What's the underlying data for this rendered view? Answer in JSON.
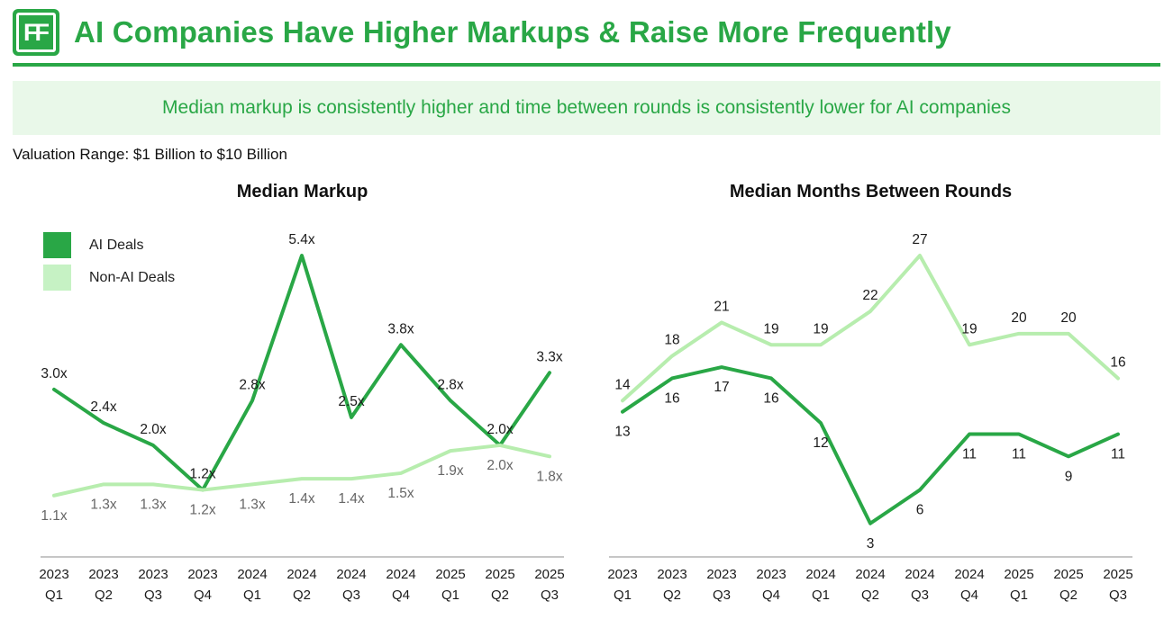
{
  "header": {
    "logo_text": "FF",
    "title": "AI Companies Have Higher Markups & Raise More Frequently"
  },
  "banner": {
    "text": "Median markup is consistently higher and time between rounds is consistently lower for AI companies"
  },
  "subtitle": {
    "text": "Valuation Range: $1 Billion to $10 Billion"
  },
  "legend": {
    "items": [
      {
        "label": "AI Deals",
        "color": "#29a746"
      },
      {
        "label": "Non-AI Deals",
        "color": "#c6f2c4"
      }
    ]
  },
  "colors": {
    "accent_green": "#29a746",
    "light_green_line": "#b7edae",
    "banner_background": "#e9f8e9",
    "axis_line": "#8c8c8c",
    "ai_label_color": "#1b1b1b",
    "non_ai_label_color_left": "#666666"
  },
  "chart_data": [
    {
      "type": "line",
      "title": "Median Markup",
      "categories": [
        "2023 Q1",
        "2023 Q2",
        "2023 Q3",
        "2023 Q4",
        "2024 Q1",
        "2024 Q2",
        "2024 Q3",
        "2024 Q4",
        "2025 Q1",
        "2025 Q2",
        "2025 Q3"
      ],
      "series": [
        {
          "name": "AI Deals",
          "color": "#29a746",
          "label_color": "#1b1b1b",
          "values": [
            3.0,
            2.4,
            2.0,
            1.2,
            2.8,
            5.4,
            2.5,
            3.8,
            2.8,
            2.0,
            3.3
          ],
          "labels": [
            "3.0x",
            "2.4x",
            "2.0x",
            "1.2x",
            "2.8x",
            "5.4x",
            "2.5x",
            "3.8x",
            "2.8x",
            "2.0x",
            "3.3x"
          ]
        },
        {
          "name": "Non-AI Deals",
          "color": "#b7edae",
          "label_color": "#666666",
          "values": [
            1.1,
            1.3,
            1.3,
            1.2,
            1.3,
            1.4,
            1.4,
            1.5,
            1.9,
            2.0,
            1.8
          ],
          "labels": [
            "1.1x",
            "1.3x",
            "1.3x",
            "1.2x",
            "1.3x",
            "1.4x",
            "1.4x",
            "1.5x",
            "1.9x",
            "2.0x",
            "1.8x"
          ]
        }
      ],
      "ylim": [
        0,
        6
      ],
      "grid": false,
      "legend_position": "top-left"
    },
    {
      "type": "line",
      "title": "Median Months Between Rounds",
      "categories": [
        "2023 Q1",
        "2023 Q2",
        "2023 Q3",
        "2023 Q4",
        "2024 Q1",
        "2024 Q2",
        "2024 Q3",
        "2024 Q4",
        "2025 Q1",
        "2025 Q2",
        "2025 Q3"
      ],
      "series": [
        {
          "name": "AI Deals",
          "color": "#29a746",
          "label_color": "#1b1b1b",
          "values": [
            13,
            16,
            17,
            16,
            12,
            3,
            6,
            11,
            11,
            9,
            11
          ],
          "labels": [
            "13",
            "16",
            "17",
            "16",
            "12",
            "3",
            "6",
            "11",
            "11",
            "9",
            "11"
          ]
        },
        {
          "name": "Non-AI Deals",
          "color": "#b7edae",
          "label_color": "#1b1b1b",
          "values": [
            14,
            18,
            21,
            19,
            19,
            22,
            27,
            19,
            20,
            20,
            16
          ],
          "labels": [
            "14",
            "18",
            "21",
            "19",
            "19",
            "22",
            "27",
            "19",
            "20",
            "20",
            "16"
          ]
        }
      ],
      "ylim": [
        0,
        30
      ],
      "grid": false,
      "legend_position": "none"
    }
  ]
}
